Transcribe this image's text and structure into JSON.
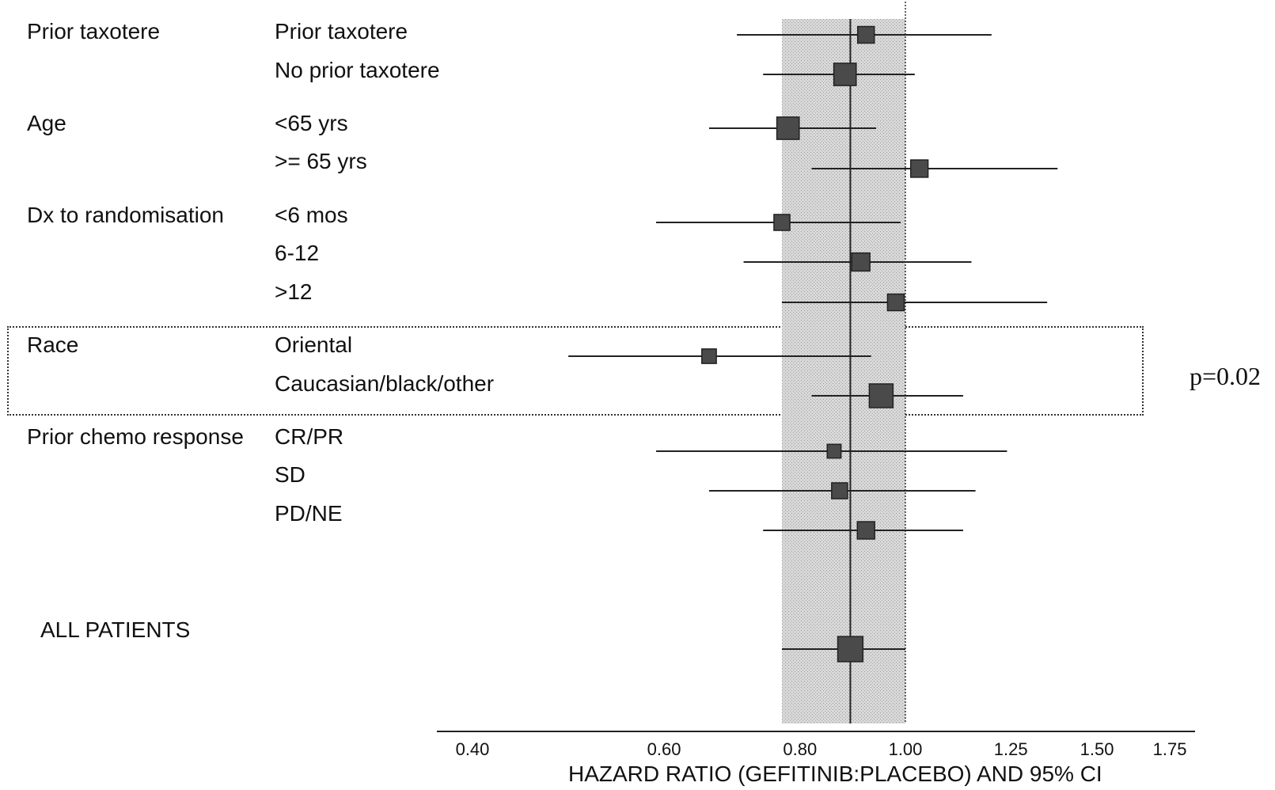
{
  "chart_data": {
    "type": "forest",
    "xlabel": "HAZARD RATIO (GEFITINIB:PLACEBO) AND 95% CI",
    "ylabel": "",
    "x_scale": "log",
    "xlim": [
      0.35,
      1.75
    ],
    "x_ticks": [
      {
        "value": 0.4,
        "label": "0.40"
      },
      {
        "value": 0.6,
        "label": "0.60"
      },
      {
        "value": 0.8,
        "label": "0.80"
      },
      {
        "value": 1.0,
        "label": "1.00"
      },
      {
        "value": 1.25,
        "label": "1.25"
      },
      {
        "value": 1.5,
        "label": "1.50"
      },
      {
        "value": 1.75,
        "label": "1.75"
      }
    ],
    "overall_hr": 0.89,
    "reference_line": 1.0,
    "overall_ci": [
      0.77,
      1.0
    ],
    "groups": [
      {
        "name": "Prior taxotere",
        "rows": [
          {
            "label": "Prior taxotere",
            "hr": 0.92,
            "lo": 0.7,
            "hi": 1.2,
            "weight": 0.5
          },
          {
            "label": "No prior taxotere",
            "hr": 0.88,
            "lo": 0.74,
            "hi": 1.02,
            "weight": 0.9
          }
        ]
      },
      {
        "name": "Age",
        "rows": [
          {
            "label": "<65 yrs",
            "hr": 0.78,
            "lo": 0.66,
            "hi": 0.94,
            "weight": 0.9
          },
          {
            "label": ">= 65 yrs",
            "hr": 1.03,
            "lo": 0.82,
            "hi": 1.38,
            "weight": 0.55
          }
        ]
      },
      {
        "name": "Dx to randomisation",
        "rows": [
          {
            "label": "<6 mos",
            "hr": 0.77,
            "lo": 0.59,
            "hi": 0.99,
            "weight": 0.45
          },
          {
            "label": "6-12",
            "hr": 0.91,
            "lo": 0.71,
            "hi": 1.15,
            "weight": 0.6
          },
          {
            "label": ">12",
            "hr": 0.98,
            "lo": 0.77,
            "hi": 1.35,
            "weight": 0.5
          }
        ]
      },
      {
        "name": "Race",
        "rows": [
          {
            "label": "Oriental",
            "hr": 0.66,
            "lo": 0.49,
            "hi": 0.93,
            "weight": 0.35
          },
          {
            "label": "Caucasian/black/other",
            "hr": 0.95,
            "lo": 0.82,
            "hi": 1.13,
            "weight": 1.0
          }
        ]
      },
      {
        "name": "Prior chemo response",
        "rows": [
          {
            "label": "CR/PR",
            "hr": 0.86,
            "lo": 0.59,
            "hi": 1.24,
            "weight": 0.3
          },
          {
            "label": "SD",
            "hr": 0.87,
            "lo": 0.66,
            "hi": 1.16,
            "weight": 0.45
          },
          {
            "label": "PD/NE",
            "hr": 0.92,
            "lo": 0.74,
            "hi": 1.13,
            "weight": 0.55
          }
        ]
      },
      {
        "name": "",
        "rows": [
          {
            "label": "ALL PATIENTS",
            "hr": 0.89,
            "lo": 0.77,
            "hi": 1.0,
            "weight": 1.1,
            "is_overall": true
          }
        ]
      }
    ],
    "annotations": [
      {
        "text": "p=0.02",
        "target": "Race"
      }
    ]
  },
  "labels": {
    "g0_name": "Prior taxotere",
    "g0_r0": "Prior taxotere",
    "g0_r1": "No prior taxotere",
    "g1_name": "Age",
    "g1_r0": "<65 yrs",
    "g1_r1": ">= 65 yrs",
    "g2_name": "Dx to randomisation",
    "g2_r0": "<6 mos",
    "g2_r1": "6-12",
    "g2_r2": ">12",
    "g3_name": "Race",
    "g3_r0": "Oriental",
    "g3_r1": "Caucasian/black/other",
    "g4_name": "Prior chemo response",
    "g4_r0": "CR/PR",
    "g4_r1": "SD",
    "g4_r2": "PD/NE",
    "overall": "ALL PATIENTS",
    "pvalue": "p=0.02"
  }
}
